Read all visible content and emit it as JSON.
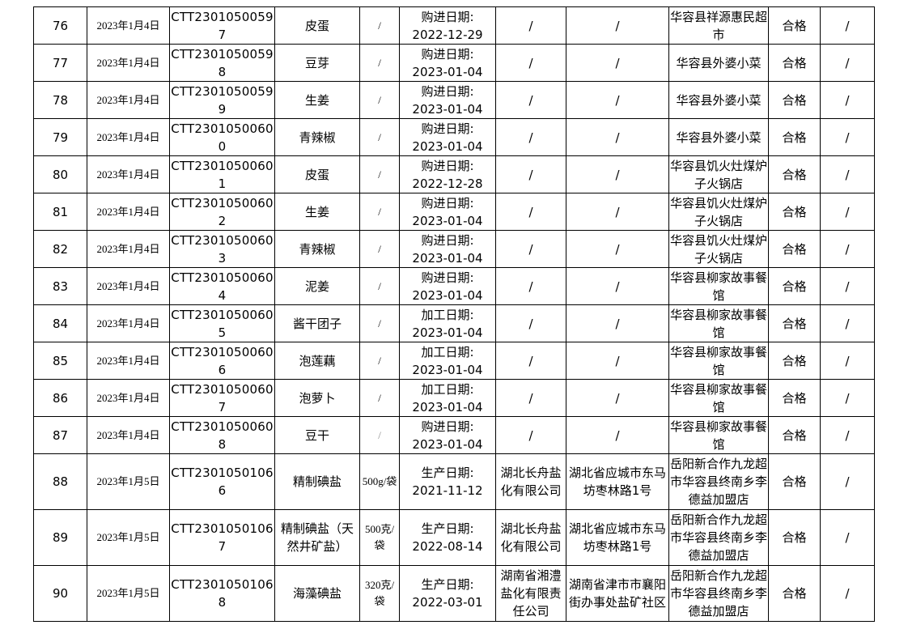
{
  "rows": [
    {
      "no": "76",
      "date": "2023年1月4日",
      "id": "CTT23010500597",
      "name": "皮蛋",
      "spec": "/",
      "date_label": "购进日期:",
      "date_value": "2022-12-29",
      "producer": "/",
      "producer_addr": "/",
      "seller": "华容县祥源惠民超市",
      "result": "合格",
      "note": "/"
    },
    {
      "no": "77",
      "date": "2023年1月4日",
      "id": "CTT23010500598",
      "name": "豆芽",
      "spec": "/",
      "date_label": "购进日期:",
      "date_value": "2023-01-04",
      "producer": "/",
      "producer_addr": "/",
      "seller": "华容县外婆小菜",
      "result": "合格",
      "note": "/"
    },
    {
      "no": "78",
      "date": "2023年1月4日",
      "id": "CTT23010500599",
      "name": "生姜",
      "spec": "/",
      "date_label": "购进日期:",
      "date_value": "2023-01-04",
      "producer": "/",
      "producer_addr": "/",
      "seller": "华容县外婆小菜",
      "result": "合格",
      "note": "/"
    },
    {
      "no": "79",
      "date": "2023年1月4日",
      "id": "CTT23010500600",
      "name": "青辣椒",
      "spec": "/",
      "date_label": "购进日期:",
      "date_value": "2023-01-04",
      "producer": "/",
      "producer_addr": "/",
      "seller": "华容县外婆小菜",
      "result": "合格",
      "note": "/"
    },
    {
      "no": "80",
      "date": "2023年1月4日",
      "id": "CTT23010500601",
      "name": "皮蛋",
      "spec": "/",
      "date_label": "购进日期:",
      "date_value": "2022-12-28",
      "producer": "/",
      "producer_addr": "/",
      "seller": "华容县饥火灶煤炉子火锅店",
      "result": "合格",
      "note": "/"
    },
    {
      "no": "81",
      "date": "2023年1月4日",
      "id": "CTT23010500602",
      "name": "生姜",
      "spec": "/",
      "date_label": "购进日期:",
      "date_value": "2023-01-04",
      "producer": "/",
      "producer_addr": "/",
      "seller": "华容县饥火灶煤炉子火锅店",
      "result": "合格",
      "note": "/"
    },
    {
      "no": "82",
      "date": "2023年1月4日",
      "id": "CTT23010500603",
      "name": "青辣椒",
      "spec": "/",
      "date_label": "购进日期:",
      "date_value": "2023-01-04",
      "producer": "/",
      "producer_addr": "/",
      "seller": "华容县饥火灶煤炉子火锅店",
      "result": "合格",
      "note": "/"
    },
    {
      "no": "83",
      "date": "2023年1月4日",
      "id": "CTT23010500604",
      "name": "泥姜",
      "spec": "/",
      "date_label": "购进日期:",
      "date_value": "2023-01-04",
      "producer": "/",
      "producer_addr": "/",
      "seller": "华容县柳家故事餐馆",
      "result": "合格",
      "note": "/"
    },
    {
      "no": "84",
      "date": "2023年1月4日",
      "id": "CTT23010500605",
      "name": "酱干团子",
      "spec": "/",
      "date_label": "加工日期:",
      "date_value": "2023-01-04",
      "producer": "/",
      "producer_addr": "/",
      "seller": "华容县柳家故事餐馆",
      "result": "合格",
      "note": "/"
    },
    {
      "no": "85",
      "date": "2023年1月4日",
      "id": "CTT23010500606",
      "name": "泡莲藕",
      "spec": "/",
      "date_label": "加工日期:",
      "date_value": "2023-01-04",
      "producer": "/",
      "producer_addr": "/",
      "seller": "华容县柳家故事餐馆",
      "result": "合格",
      "note": "/"
    },
    {
      "no": "86",
      "date": "2023年1月4日",
      "id": "CTT23010500607",
      "name": "泡萝卜",
      "spec": "/",
      "date_label": "加工日期:",
      "date_value": "2023-01-04",
      "producer": "/",
      "producer_addr": "/",
      "seller": "华容县柳家故事餐馆",
      "result": "合格",
      "note": "/"
    },
    {
      "no": "87",
      "date": "2023年1月4日",
      "id": "CTT23010500608",
      "name": "豆干",
      "spec": "/",
      "date_label": "购进日期:",
      "date_value": "2023-01-04",
      "producer": "/",
      "producer_addr": "/",
      "seller": "华容县柳家故事餐馆",
      "result": "合格",
      "note": "/"
    },
    {
      "no": "88",
      "date": "2023年1月5日",
      "id": "CTT23010501066",
      "name": "精制碘盐",
      "spec": "500g/袋",
      "date_label": "生产日期:",
      "date_value": "2021-11-12",
      "producer": "湖北长舟盐化有限公司",
      "producer_addr": "湖北省应城市东马坊枣林路1号",
      "seller": "岳阳新合作九龙超市华容县终南乡李德益加盟店",
      "result": "合格",
      "note": "/"
    },
    {
      "no": "89",
      "date": "2023年1月5日",
      "id": "CTT23010501067",
      "name": "精制碘盐（天然井矿盐）",
      "spec": "500克/袋",
      "date_label": "生产日期:",
      "date_value": "2022-08-14",
      "producer": "湖北长舟盐化有限公司",
      "producer_addr": "湖北省应城市东马坊枣林路1号",
      "seller": "岳阳新合作九龙超市华容县终南乡李德益加盟店",
      "result": "合格",
      "note": "/"
    },
    {
      "no": "90",
      "date": "2023年1月5日",
      "id": "CTT23010501068",
      "name": "海藻碘盐",
      "spec": "320克/袋",
      "date_label": "生产日期:",
      "date_value": "2022-03-01",
      "producer": "湖南省湘澧盐化有限责任公司",
      "producer_addr": "湖南省津市市襄阳街办事处盐矿社区",
      "seller": "岳阳新合作九龙超市华容县终南乡李德益加盟店",
      "result": "合格",
      "note": "/"
    }
  ]
}
